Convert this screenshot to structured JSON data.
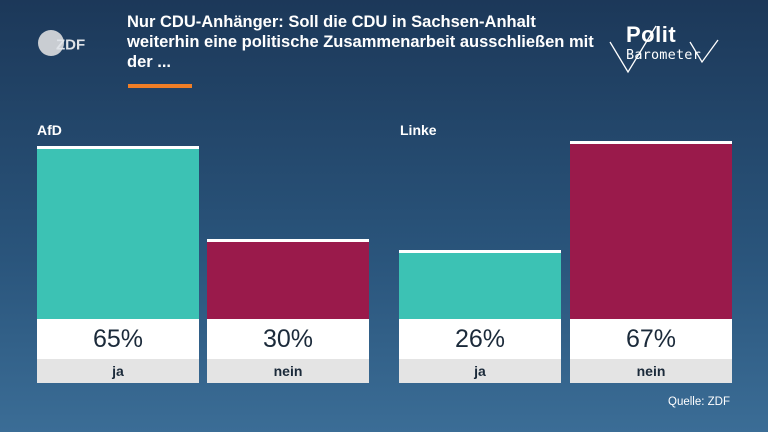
{
  "broadcaster": {
    "logo_text": "ZDF"
  },
  "header": {
    "title": "Nur CDU-Anhänger: Soll die CDU in Sachsen-Anhalt weiterhin eine politische Zusammenarbeit ausschließen mit der ...",
    "accent_color": "#f07e26"
  },
  "brand": {
    "line1": "Polit",
    "line2": "Barometer"
  },
  "colors": {
    "ja": "#3cc2b4",
    "nein": "#9a1a4b",
    "background_top": "#1c3859",
    "background_bottom": "#3b6d96"
  },
  "chart_data": {
    "type": "bar",
    "groups": [
      "AfD",
      "Linke"
    ],
    "categories": [
      "ja",
      "nein"
    ],
    "series": [
      {
        "group": "AfD",
        "values": [
          65,
          30
        ]
      },
      {
        "group": "Linke",
        "values": [
          26,
          67
        ]
      }
    ],
    "value_labels": [
      [
        "65%",
        "30%"
      ],
      [
        "26%",
        "67%"
      ]
    ],
    "unit": "%",
    "ylim": [
      0,
      67
    ]
  },
  "footer": {
    "source": "Quelle: ZDF"
  }
}
